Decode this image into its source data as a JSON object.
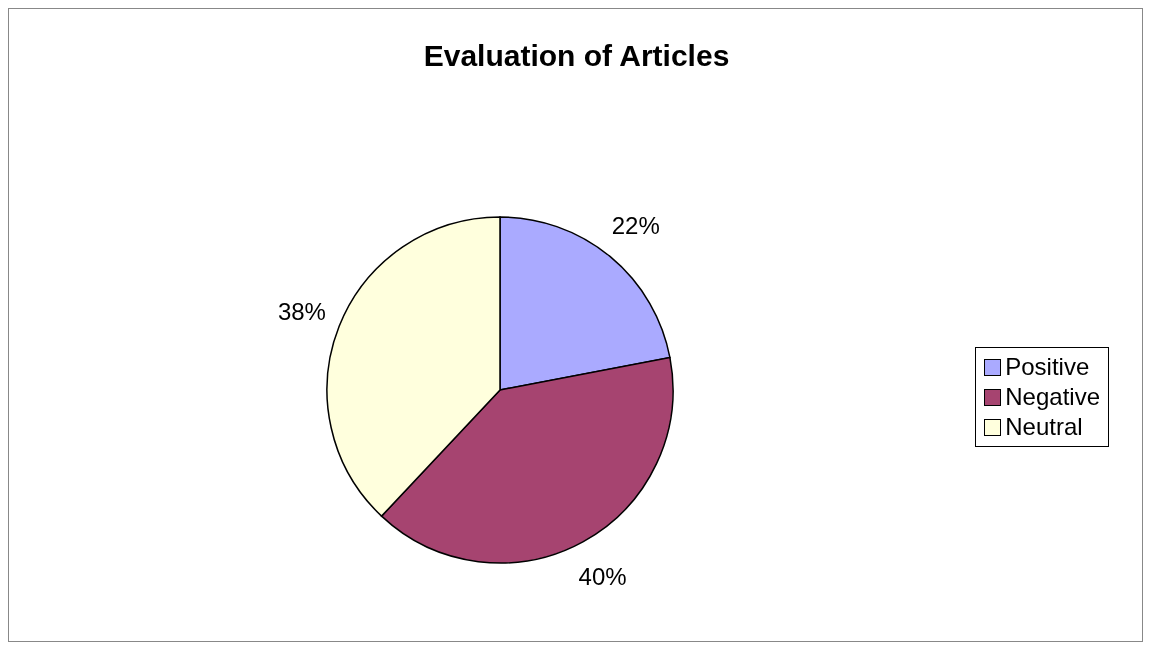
{
  "chart_data": {
    "type": "pie",
    "title": "Evaluation of Articles",
    "categories": [
      "Positive",
      "Negative",
      "Neutral"
    ],
    "values": [
      22,
      40,
      38
    ],
    "colors": [
      "#aaaaff",
      "#a64470",
      "#ffffdd"
    ],
    "value_labels": [
      "22%",
      "40%",
      "38%"
    ],
    "legend": "right"
  }
}
